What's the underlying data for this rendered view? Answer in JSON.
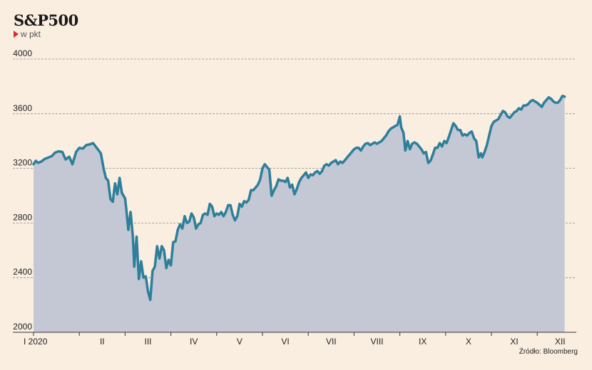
{
  "title": "S&P500",
  "unit": "w pkt",
  "source": "Źródło: Bloomberg",
  "colors": {
    "background": "#faeee1",
    "area": "#c3c8d4",
    "line": "#2e7f9a",
    "grid": "#8c8c8c",
    "unit_arrow": "#e2262b"
  },
  "chart_data": {
    "type": "area",
    "title": "S&P500",
    "ylabel": "w pkt",
    "xlabel": "",
    "ylim": [
      2000,
      4000
    ],
    "yticks": [
      2000,
      2400,
      2800,
      3200,
      3600,
      4000
    ],
    "xlim": [
      0,
      12
    ],
    "xticks": [
      {
        "label": "I 2020",
        "x": 0
      },
      {
        "label": "II",
        "x": 1
      },
      {
        "label": "III",
        "x": 2
      },
      {
        "label": "IV",
        "x": 3
      },
      {
        "label": "V",
        "x": 4
      },
      {
        "label": "VI",
        "x": 5
      },
      {
        "label": "VII",
        "x": 6
      },
      {
        "label": "VIII",
        "x": 7
      },
      {
        "label": "IX",
        "x": 8
      },
      {
        "label": "X",
        "x": 9
      },
      {
        "label": "XI",
        "x": 10
      },
      {
        "label": "XII",
        "x": 11
      }
    ],
    "grid": true,
    "legend": "none",
    "series": [
      {
        "name": "",
        "points": [
          [
            0.0,
            3230
          ],
          [
            0.05,
            3255
          ],
          [
            0.1,
            3240
          ],
          [
            0.17,
            3250
          ],
          [
            0.25,
            3270
          ],
          [
            0.33,
            3280
          ],
          [
            0.4,
            3290
          ],
          [
            0.47,
            3315
          ],
          [
            0.55,
            3325
          ],
          [
            0.63,
            3320
          ],
          [
            0.7,
            3265
          ],
          [
            0.78,
            3285
          ],
          [
            0.85,
            3230
          ],
          [
            0.93,
            3320
          ],
          [
            1.0,
            3350
          ],
          [
            1.08,
            3345
          ],
          [
            1.15,
            3370
          ],
          [
            1.22,
            3375
          ],
          [
            1.3,
            3385
          ],
          [
            1.38,
            3350
          ],
          [
            1.47,
            3310
          ],
          [
            1.53,
            3200
          ],
          [
            1.58,
            3130
          ],
          [
            1.63,
            3110
          ],
          [
            1.68,
            2975
          ],
          [
            1.73,
            2955
          ],
          [
            1.78,
            3090
          ],
          [
            1.83,
            3010
          ],
          [
            1.88,
            3130
          ],
          [
            1.93,
            3020
          ],
          [
            2.0,
            2980
          ],
          [
            2.03,
            2890
          ],
          [
            2.07,
            2750
          ],
          [
            2.12,
            2880
          ],
          [
            2.17,
            2700
          ],
          [
            2.2,
            2480
          ],
          [
            2.25,
            2700
          ],
          [
            2.3,
            2390
          ],
          [
            2.35,
            2520
          ],
          [
            2.4,
            2400
          ],
          [
            2.45,
            2410
          ],
          [
            2.5,
            2300
          ],
          [
            2.55,
            2237
          ],
          [
            2.6,
            2450
          ],
          [
            2.65,
            2480
          ],
          [
            2.7,
            2630
          ],
          [
            2.75,
            2540
          ],
          [
            2.8,
            2630
          ],
          [
            2.85,
            2600
          ],
          [
            2.9,
            2470
          ],
          [
            2.95,
            2530
          ],
          [
            3.0,
            2490
          ],
          [
            3.05,
            2660
          ],
          [
            3.1,
            2665
          ],
          [
            3.15,
            2750
          ],
          [
            3.2,
            2790
          ],
          [
            3.25,
            2760
          ],
          [
            3.3,
            2850
          ],
          [
            3.35,
            2800
          ],
          [
            3.4,
            2810
          ],
          [
            3.45,
            2870
          ],
          [
            3.5,
            2840
          ],
          [
            3.55,
            2760
          ],
          [
            3.6,
            2790
          ],
          [
            3.65,
            2800
          ],
          [
            3.7,
            2860
          ],
          [
            3.75,
            2870
          ],
          [
            3.8,
            2860
          ],
          [
            3.85,
            2940
          ],
          [
            3.9,
            2920
          ],
          [
            3.95,
            2850
          ],
          [
            4.0,
            2870
          ],
          [
            4.05,
            2860
          ],
          [
            4.1,
            2880
          ],
          [
            4.15,
            2850
          ],
          [
            4.2,
            2880
          ],
          [
            4.25,
            2930
          ],
          [
            4.3,
            2930
          ],
          [
            4.35,
            2860
          ],
          [
            4.4,
            2820
          ],
          [
            4.45,
            2850
          ],
          [
            4.5,
            2940
          ],
          [
            4.55,
            2920
          ],
          [
            4.6,
            2960
          ],
          [
            4.65,
            2950
          ],
          [
            4.7,
            2970
          ],
          [
            4.75,
            3040
          ],
          [
            4.8,
            3040
          ],
          [
            4.85,
            3060
          ],
          [
            4.9,
            3080
          ],
          [
            4.95,
            3120
          ],
          [
            5.0,
            3200
          ],
          [
            5.05,
            3230
          ],
          [
            5.1,
            3210
          ],
          [
            5.15,
            3190
          ],
          [
            5.2,
            3000
          ],
          [
            5.25,
            3040
          ],
          [
            5.3,
            3070
          ],
          [
            5.35,
            3120
          ],
          [
            5.4,
            3110
          ],
          [
            5.45,
            3110
          ],
          [
            5.5,
            3100
          ],
          [
            5.55,
            3130
          ],
          [
            5.6,
            3060
          ],
          [
            5.65,
            3080
          ],
          [
            5.7,
            3010
          ],
          [
            5.75,
            3050
          ],
          [
            5.8,
            3100
          ],
          [
            5.85,
            3130
          ],
          [
            5.9,
            3150
          ],
          [
            5.95,
            3170
          ],
          [
            6.0,
            3130
          ],
          [
            6.05,
            3155
          ],
          [
            6.1,
            3150
          ],
          [
            6.15,
            3170
          ],
          [
            6.2,
            3180
          ],
          [
            6.25,
            3160
          ],
          [
            6.3,
            3180
          ],
          [
            6.35,
            3220
          ],
          [
            6.4,
            3230
          ],
          [
            6.45,
            3220
          ],
          [
            6.5,
            3240
          ],
          [
            6.55,
            3250
          ],
          [
            6.6,
            3260
          ],
          [
            6.65,
            3230
          ],
          [
            6.7,
            3250
          ],
          [
            6.75,
            3240
          ],
          [
            6.8,
            3260
          ],
          [
            6.85,
            3280
          ],
          [
            6.9,
            3300
          ],
          [
            6.95,
            3320
          ],
          [
            7.0,
            3340
          ],
          [
            7.05,
            3350
          ],
          [
            7.1,
            3350
          ],
          [
            7.15,
            3330
          ],
          [
            7.2,
            3360
          ],
          [
            7.25,
            3380
          ],
          [
            7.3,
            3385
          ],
          [
            7.35,
            3370
          ],
          [
            7.4,
            3380
          ],
          [
            7.45,
            3390
          ],
          [
            7.5,
            3380
          ],
          [
            7.55,
            3390
          ],
          [
            7.6,
            3400
          ],
          [
            7.65,
            3420
          ],
          [
            7.7,
            3440
          ],
          [
            7.75,
            3470
          ],
          [
            7.8,
            3490
          ],
          [
            7.85,
            3500
          ],
          [
            7.9,
            3510
          ],
          [
            7.95,
            3520
          ],
          [
            8.0,
            3580
          ],
          [
            8.03,
            3500
          ],
          [
            8.08,
            3460
          ],
          [
            8.12,
            3330
          ],
          [
            8.17,
            3400
          ],
          [
            8.22,
            3340
          ],
          [
            8.27,
            3380
          ],
          [
            8.32,
            3390
          ],
          [
            8.37,
            3380
          ],
          [
            8.42,
            3360
          ],
          [
            8.47,
            3340
          ],
          [
            8.52,
            3310
          ],
          [
            8.57,
            3320
          ],
          [
            8.62,
            3240
          ],
          [
            8.67,
            3255
          ],
          [
            8.72,
            3300
          ],
          [
            8.77,
            3350
          ],
          [
            8.82,
            3350
          ],
          [
            8.87,
            3385
          ],
          [
            8.92,
            3360
          ],
          [
            8.97,
            3400
          ],
          [
            9.02,
            3385
          ],
          [
            9.07,
            3430
          ],
          [
            9.12,
            3480
          ],
          [
            9.17,
            3530
          ],
          [
            9.22,
            3510
          ],
          [
            9.27,
            3480
          ],
          [
            9.32,
            3480
          ],
          [
            9.37,
            3440
          ],
          [
            9.42,
            3450
          ],
          [
            9.47,
            3440
          ],
          [
            9.52,
            3460
          ],
          [
            9.57,
            3470
          ],
          [
            9.62,
            3420
          ],
          [
            9.67,
            3400
          ],
          [
            9.72,
            3280
          ],
          [
            9.77,
            3310
          ],
          [
            9.8,
            3280
          ],
          [
            9.85,
            3320
          ],
          [
            9.9,
            3370
          ],
          [
            9.95,
            3440
          ],
          [
            10.0,
            3510
          ],
          [
            10.05,
            3540
          ],
          [
            10.1,
            3550
          ],
          [
            10.15,
            3560
          ],
          [
            10.2,
            3590
          ],
          [
            10.25,
            3620
          ],
          [
            10.3,
            3610
          ],
          [
            10.35,
            3580
          ],
          [
            10.4,
            3570
          ],
          [
            10.45,
            3590
          ],
          [
            10.5,
            3610
          ],
          [
            10.55,
            3620
          ],
          [
            10.6,
            3640
          ],
          [
            10.65,
            3630
          ],
          [
            10.7,
            3660
          ],
          [
            10.75,
            3660
          ],
          [
            10.8,
            3670
          ],
          [
            10.85,
            3690
          ],
          [
            10.9,
            3700
          ],
          [
            10.95,
            3690
          ],
          [
            11.0,
            3680
          ],
          [
            11.05,
            3665
          ],
          [
            11.1,
            3650
          ],
          [
            11.15,
            3680
          ],
          [
            11.2,
            3700
          ],
          [
            11.25,
            3720
          ],
          [
            11.3,
            3710
          ],
          [
            11.35,
            3690
          ],
          [
            11.4,
            3680
          ],
          [
            11.45,
            3680
          ],
          [
            11.5,
            3700
          ],
          [
            11.55,
            3730
          ],
          [
            11.6,
            3725
          ]
        ]
      }
    ]
  }
}
